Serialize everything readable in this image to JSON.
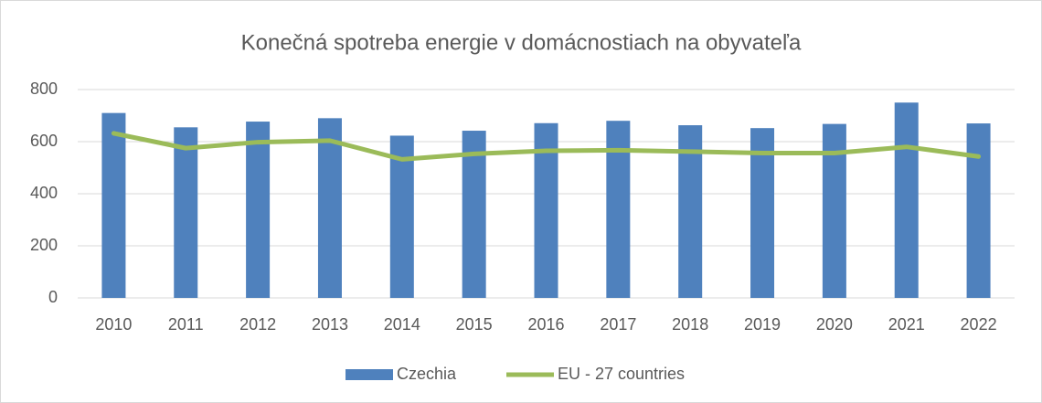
{
  "chart_data": {
    "type": "bar",
    "title": "Konečná spotreba energie v domácnostiach na obyvateľa",
    "categories": [
      "2010",
      "2011",
      "2012",
      "2013",
      "2014",
      "2015",
      "2016",
      "2017",
      "2018",
      "2019",
      "2020",
      "2021",
      "2022"
    ],
    "series": [
      {
        "name": "Czechia",
        "type": "bar",
        "color": "#4f81bd",
        "values": [
          710,
          655,
          677,
          690,
          623,
          642,
          671,
          680,
          663,
          652,
          668,
          750,
          670
        ]
      },
      {
        "name": "EU - 27 countries",
        "type": "line",
        "color": "#9bbb59",
        "values": [
          632,
          575,
          598,
          604,
          532,
          553,
          565,
          567,
          562,
          556,
          556,
          580,
          543
        ]
      }
    ],
    "ylim": [
      0,
      800
    ],
    "yticks": [
      0,
      200,
      400,
      600,
      800
    ],
    "grid": true,
    "legend": "bottom"
  }
}
